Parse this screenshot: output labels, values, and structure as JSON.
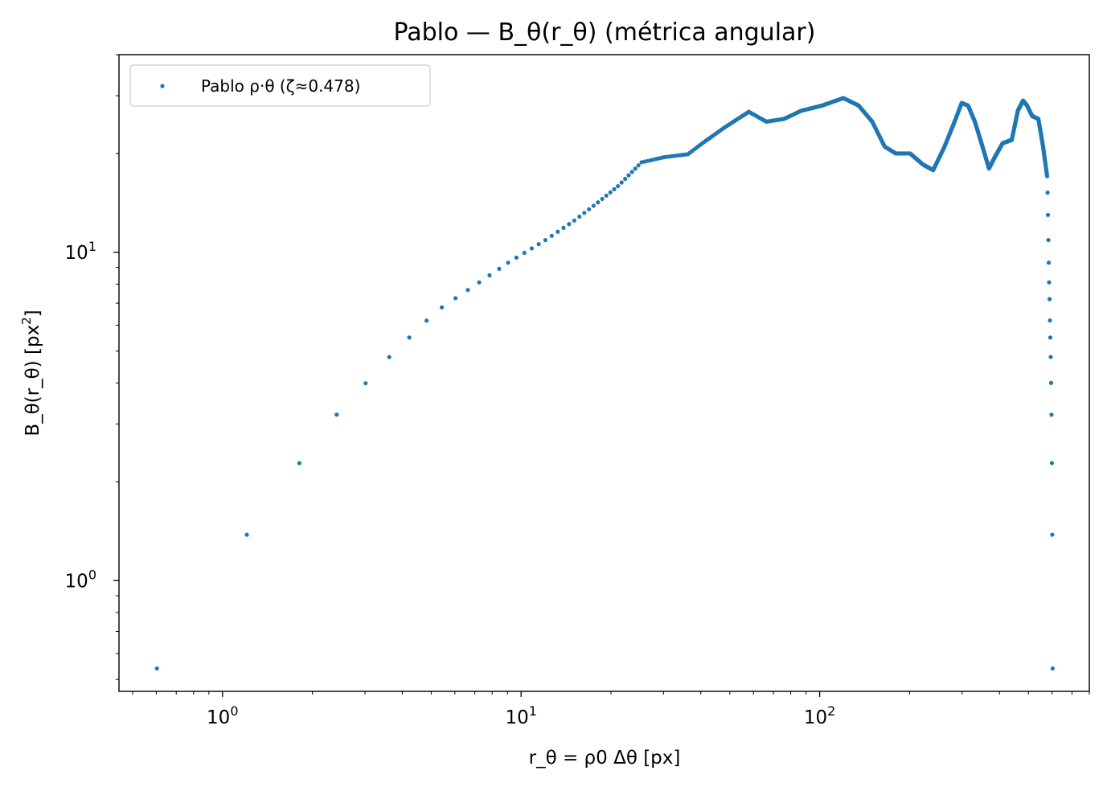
{
  "chart_data": {
    "type": "scatter",
    "title": "Pablo — B_θ(r_θ) (métrica angular)",
    "xlabel": "r_θ = ρ0 Δθ [px]",
    "ylabel_main": "B_θ(r_θ) [px",
    "ylabel_sup": "2",
    "ylabel_tail": "]",
    "xscale": "log",
    "yscale": "log",
    "xlim": [
      0.45,
      800
    ],
    "ylim": [
      0.46,
      40
    ],
    "grid": false,
    "legend_position": "top-left",
    "x_ticks": [
      {
        "value": 1,
        "base": "10",
        "exp": "0"
      },
      {
        "value": 10,
        "base": "10",
        "exp": "1"
      },
      {
        "value": 100,
        "base": "10",
        "exp": "2"
      }
    ],
    "y_ticks": [
      {
        "value": 1,
        "base": "10",
        "exp": "0"
      },
      {
        "value": 10,
        "base": "10",
        "exp": "1"
      }
    ],
    "series": [
      {
        "name": "Pablo ρ·θ (ζ≈0.478)",
        "color": "#1f77b4",
        "marker": "point",
        "x_step": 0.603,
        "x_count": 1000,
        "curve_anchors": [
          [
            0.603,
            0.54
          ],
          [
            1.206,
            1.38
          ],
          [
            1.81,
            2.28
          ],
          [
            2.41,
            3.2
          ],
          [
            3.02,
            4.0
          ],
          [
            3.62,
            4.8
          ],
          [
            4.22,
            5.5
          ],
          [
            4.83,
            6.2
          ],
          [
            5.43,
            6.8
          ],
          [
            6.03,
            7.25
          ],
          [
            7.24,
            8.1
          ],
          [
            9.05,
            9.3
          ],
          [
            12.06,
            10.9
          ],
          [
            15.08,
            12.5
          ],
          [
            18.1,
            14.2
          ],
          [
            21.1,
            15.9
          ],
          [
            25.3,
            18.8
          ],
          [
            30.2,
            19.5
          ],
          [
            36.2,
            19.9
          ],
          [
            40.5,
            21.5
          ],
          [
            48.0,
            24.0
          ],
          [
            57.9,
            26.8
          ],
          [
            66.3,
            25.0
          ],
          [
            76.0,
            25.5
          ],
          [
            86.8,
            27.0
          ],
          [
            102.0,
            28.0
          ],
          [
            120.0,
            29.5
          ],
          [
            135.0,
            28.0
          ],
          [
            150.0,
            25.0
          ],
          [
            165.0,
            21.0
          ],
          [
            180.0,
            20.0
          ],
          [
            201.0,
            20.0
          ],
          [
            222.0,
            18.5
          ],
          [
            240.0,
            17.8
          ],
          [
            262.0,
            21.0
          ],
          [
            283.0,
            25.0
          ],
          [
            299.0,
            28.5
          ],
          [
            314.0,
            28.0
          ],
          [
            331.0,
            25.0
          ],
          [
            351.0,
            21.0
          ],
          [
            369.0,
            18.0
          ],
          [
            386.0,
            19.5
          ],
          [
            410.0,
            21.5
          ],
          [
            440.0,
            22.0
          ],
          [
            461.0,
            27.0
          ],
          [
            480.0,
            29.0
          ],
          [
            495.0,
            28.0
          ],
          [
            515.0,
            26.0
          ],
          [
            540.0,
            25.5
          ],
          [
            560.0,
            21.0
          ],
          [
            578.0,
            17.0
          ]
        ],
        "tail_y": [
          15.2,
          13.0,
          10.9,
          9.3,
          8.1,
          7.2,
          6.2,
          5.5,
          4.8,
          4.0,
          3.2,
          2.28,
          1.38,
          0.54
        ]
      }
    ]
  }
}
